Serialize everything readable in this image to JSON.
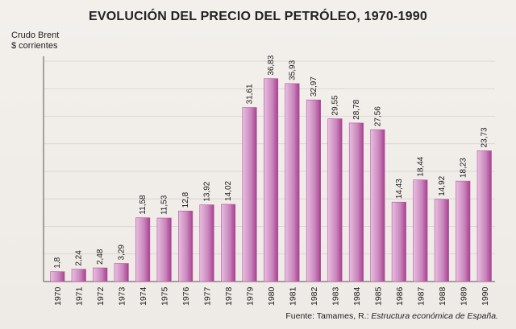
{
  "chart_data": {
    "type": "bar",
    "title": "EVOLUCIÓN DEL PRECIO DEL PETRÓLEO, 1970-1990",
    "ylabel": [
      "Crudo Brent",
      "$ corrientes"
    ],
    "categories": [
      "1970",
      "1971",
      "1972",
      "1973",
      "1974",
      "1975",
      "1976",
      "1977",
      "1978",
      "1979",
      "1980",
      "1981",
      "1982",
      "1983",
      "1984",
      "1985",
      "1986",
      "1987",
      "1988",
      "1989",
      "1990"
    ],
    "values": [
      1.8,
      2.24,
      2.48,
      3.29,
      11.58,
      11.53,
      12.8,
      13.92,
      14.02,
      31.61,
      36.83,
      35.93,
      32.97,
      29.55,
      28.78,
      27.56,
      14.43,
      18.44,
      14.92,
      18.23,
      23.73
    ],
    "value_labels": [
      "1,8",
      "2,24",
      "2,48",
      "3,29",
      "11,58",
      "11,53",
      "12,8",
      "13,92",
      "14,02",
      "31,61",
      "36,83",
      "35,93",
      "32,97",
      "29,55",
      "28,78",
      "27,56",
      "14,43",
      "18,44",
      "14,92",
      "18,23",
      "23,73"
    ],
    "ylim": [
      0,
      40
    ],
    "grid": true,
    "bar_color": "#b8569e"
  },
  "source": {
    "prefix": "Fuente: Tamames, R.: ",
    "reference": "Estructura económica de España."
  }
}
